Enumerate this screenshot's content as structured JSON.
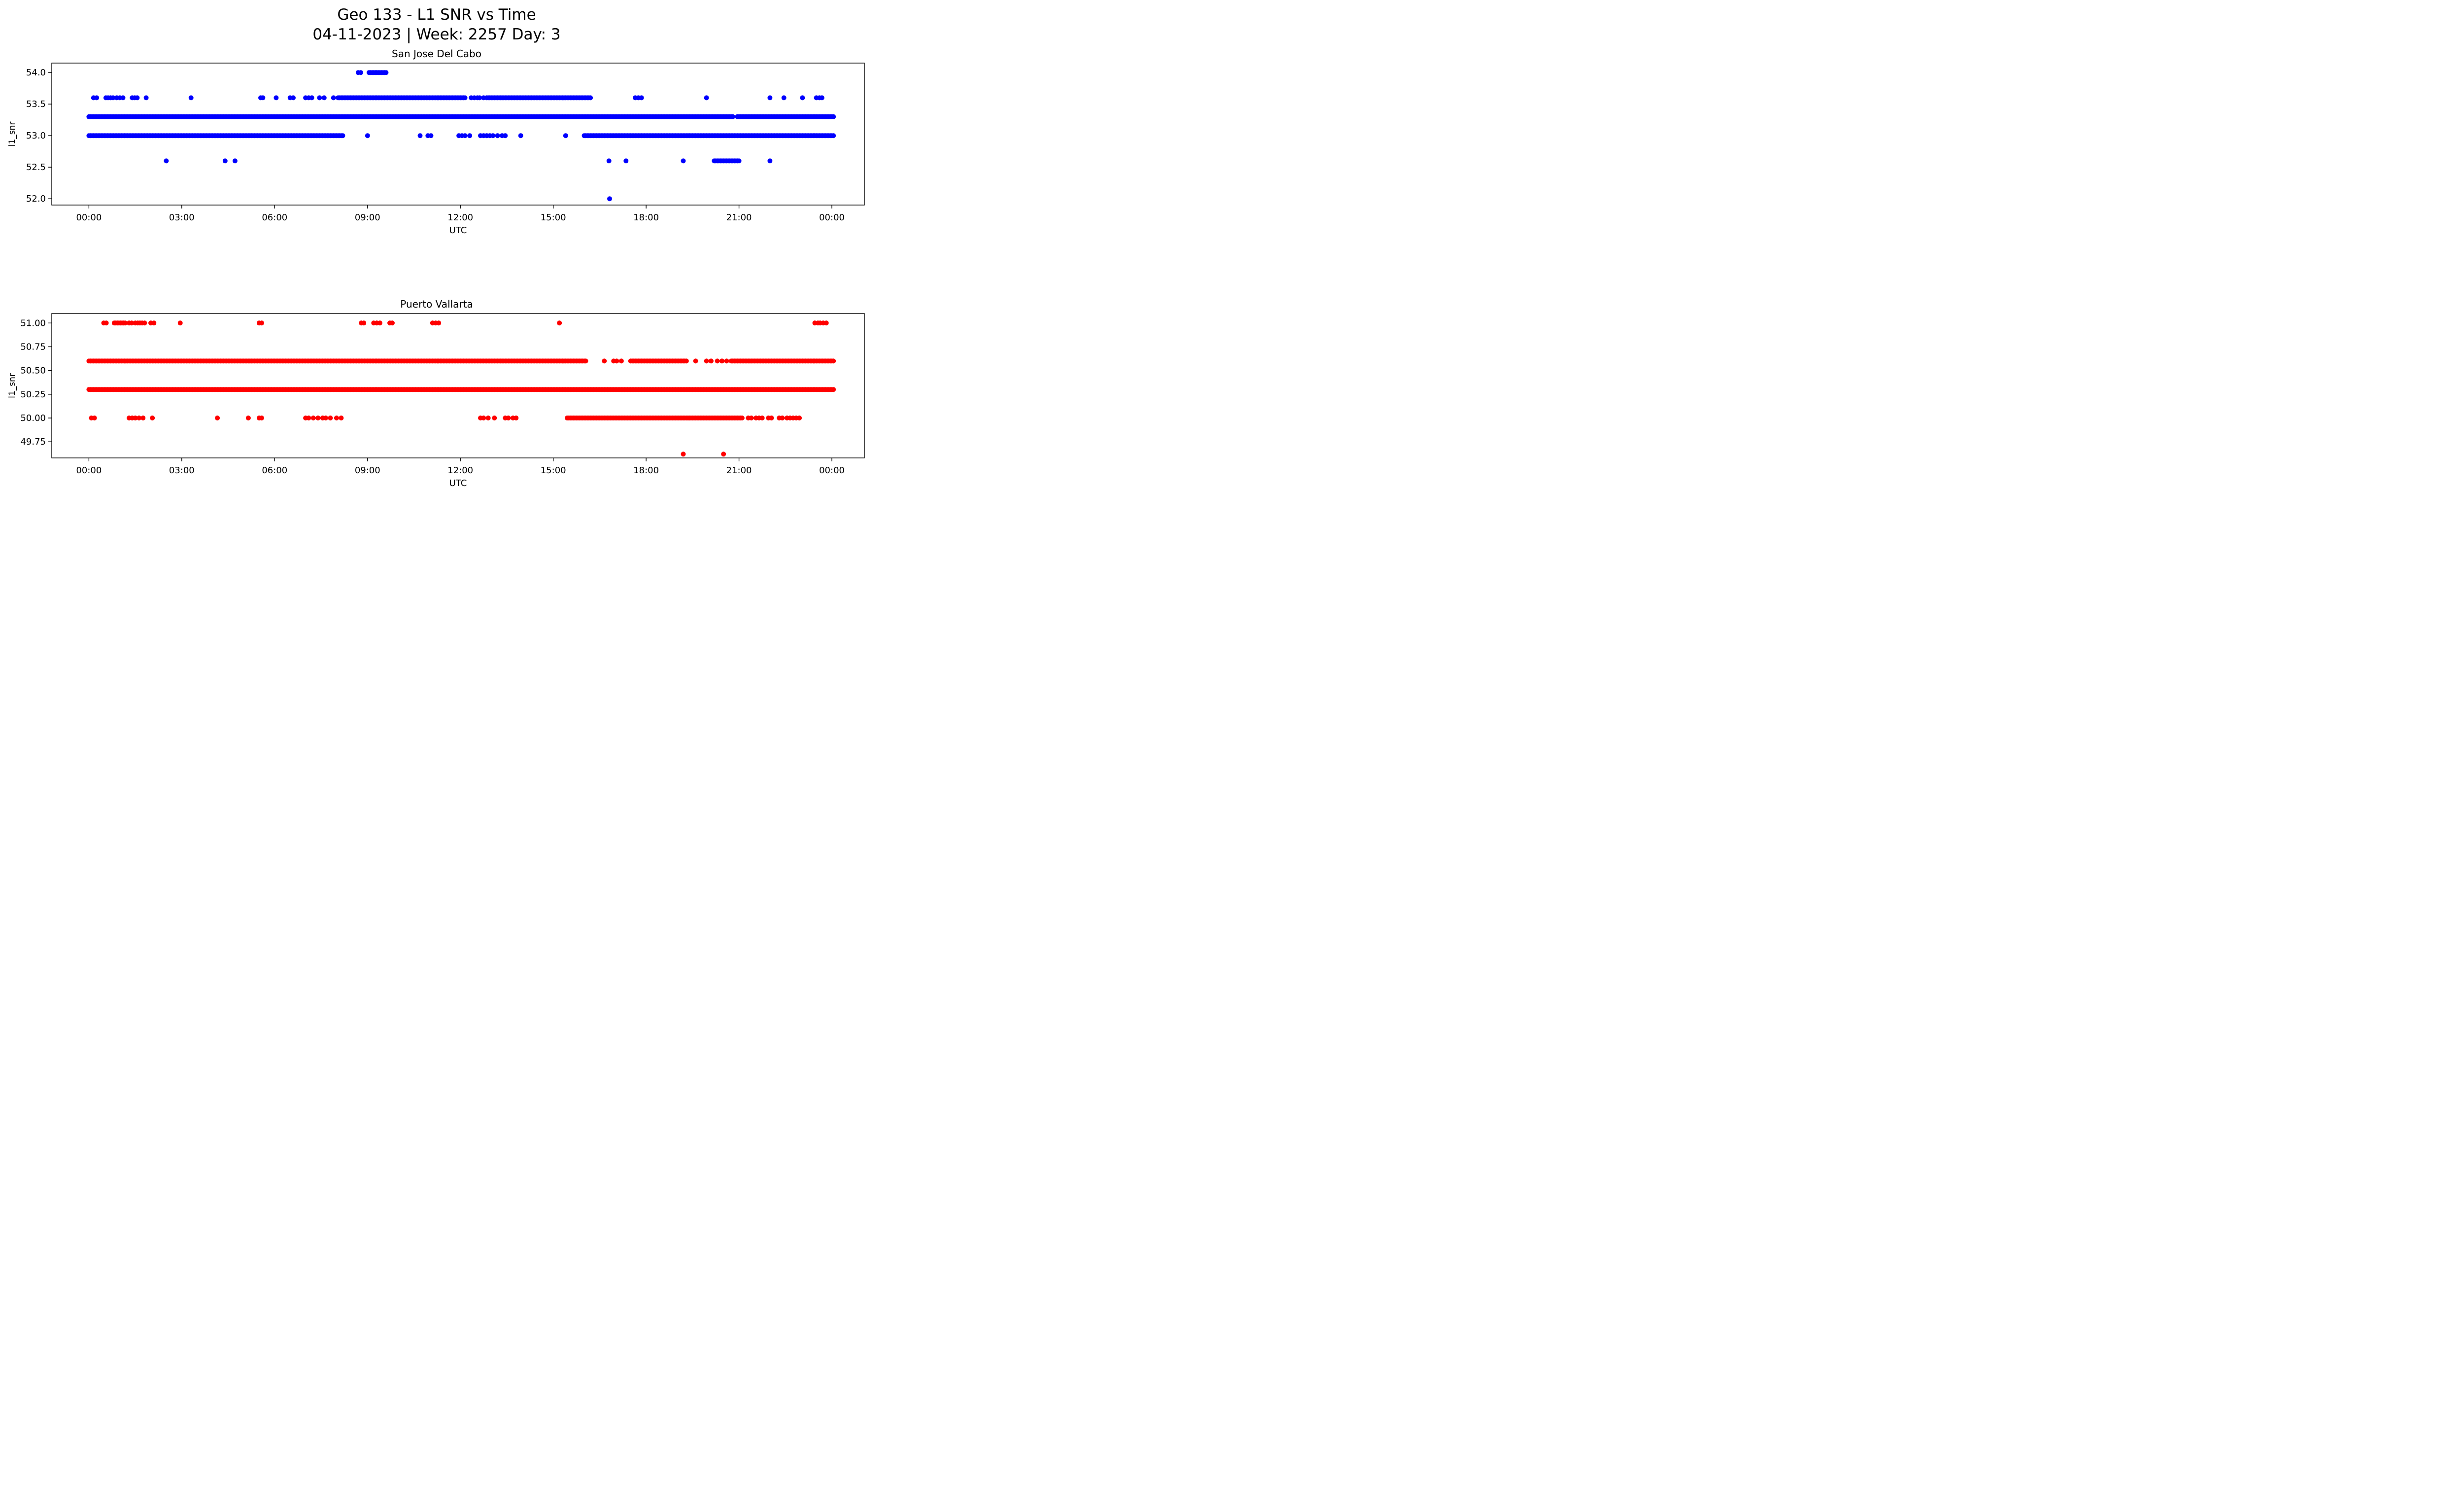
{
  "figure": {
    "title": "Geo 133 - L1 SNR vs Time",
    "subtitle": "04-11-2023 | Week: 2257 Day: 3"
  },
  "chart_data": [
    {
      "type": "scatter",
      "title": "San Jose Del Cabo",
      "xlabel": "UTC",
      "ylabel": "l1_snr",
      "color": "#0000ff",
      "grid": false,
      "legend": "none",
      "xlim": [
        -1.2,
        25.05
      ],
      "ylim": [
        51.9,
        54.15
      ],
      "xticks": [
        "00:00",
        "03:00",
        "06:00",
        "09:00",
        "12:00",
        "15:00",
        "18:00",
        "21:00",
        "00:00"
      ],
      "xtick_hours": [
        0,
        3,
        6,
        9,
        12,
        15,
        18,
        21,
        24
      ],
      "yticks": [
        {
          "v": 54.0,
          "label": "54.0"
        },
        {
          "v": 53.5,
          "label": "53.5"
        },
        {
          "v": 53.0,
          "label": "53.0"
        },
        {
          "v": 52.5,
          "label": "52.5"
        },
        {
          "v": 52.0,
          "label": "52.0"
        }
      ],
      "bands": [
        {
          "snr": 54.0,
          "points": [
            8.7,
            8.78
          ],
          "runs": [
            [
              9.05,
              9.6
            ]
          ]
        },
        {
          "snr": 53.6,
          "points": [
            0.15,
            0.25,
            0.55,
            0.62,
            0.7,
            0.78,
            0.9,
            1.0,
            1.1,
            1.4,
            1.48,
            1.56,
            1.85,
            3.3,
            5.55,
            5.62,
            6.05,
            6.5,
            6.6,
            7.0,
            7.1,
            7.2,
            7.45,
            7.6,
            7.9,
            12.35,
            12.45,
            12.55,
            12.62,
            12.75,
            17.65,
            17.75,
            17.85,
            19.95,
            22.0,
            22.45,
            23.05,
            23.5,
            23.6,
            23.68
          ],
          "runs": [
            [
              8.05,
              12.15
            ],
            [
              12.85,
              16.2
            ]
          ]
        },
        {
          "snr": 53.3,
          "points": [],
          "runs": [
            [
              0.0,
              20.8
            ],
            [
              20.95,
              24.05
            ]
          ]
        },
        {
          "snr": 53.0,
          "points": [
            9.0,
            10.7,
            10.95,
            11.05,
            11.95,
            12.05,
            12.15,
            12.3,
            12.65,
            12.75,
            12.85,
            12.95,
            13.05,
            13.2,
            13.35,
            13.45,
            13.95,
            15.4
          ],
          "runs": [
            [
              0.0,
              8.2
            ],
            [
              16.0,
              24.05
            ]
          ]
        },
        {
          "snr": 52.6,
          "points": [
            2.5,
            4.4,
            4.72,
            16.8,
            17.35,
            19.2,
            22.0
          ],
          "runs": [
            [
              20.2,
              21.0
            ]
          ]
        },
        {
          "snr": 52.0,
          "points": [
            16.82
          ],
          "runs": []
        }
      ]
    },
    {
      "type": "scatter",
      "title": "Puerto Vallarta",
      "xlabel": "UTC",
      "ylabel": "l1_snr",
      "color": "#ff0000",
      "grid": false,
      "legend": "none",
      "xlim": [
        -1.2,
        25.05
      ],
      "ylim": [
        49.58,
        51.1
      ],
      "xticks": [
        "00:00",
        "03:00",
        "06:00",
        "09:00",
        "12:00",
        "15:00",
        "18:00",
        "21:00",
        "00:00"
      ],
      "xtick_hours": [
        0,
        3,
        6,
        9,
        12,
        15,
        18,
        21,
        24
      ],
      "yticks": [
        {
          "v": 51.0,
          "label": "51.00"
        },
        {
          "v": 50.75,
          "label": "50.75"
        },
        {
          "v": 50.5,
          "label": "50.50"
        },
        {
          "v": 50.25,
          "label": "50.25"
        },
        {
          "v": 50.0,
          "label": "50.00"
        },
        {
          "v": 49.75,
          "label": "49.75"
        }
      ],
      "bands": [
        {
          "snr": 51.0,
          "points": [
            0.48,
            0.56,
            1.3,
            1.38,
            1.5,
            1.58,
            1.65,
            1.72,
            1.8,
            2.0,
            2.1,
            2.95,
            5.5,
            5.58,
            8.8,
            8.88,
            9.2,
            9.3,
            9.4,
            9.72,
            9.8,
            11.1,
            11.2,
            11.3,
            15.2,
            23.45,
            23.55,
            23.62,
            23.72,
            23.82
          ],
          "runs": [
            [
              0.82,
              1.2
            ]
          ]
        },
        {
          "snr": 50.6,
          "points": [
            16.65,
            16.95,
            17.05,
            17.2,
            19.6,
            19.95,
            20.1,
            20.3,
            20.45,
            20.6
          ],
          "runs": [
            [
              0.0,
              16.05
            ],
            [
              17.5,
              19.3
            ],
            [
              20.75,
              24.05
            ]
          ]
        },
        {
          "snr": 50.3,
          "points": [],
          "runs": [
            [
              0.0,
              24.05
            ]
          ]
        },
        {
          "snr": 50.0,
          "points": [
            0.08,
            0.18,
            1.3,
            1.4,
            1.5,
            1.62,
            1.75,
            2.05,
            4.15,
            5.15,
            5.5,
            5.58,
            7.0,
            7.1,
            7.25,
            7.4,
            7.55,
            7.65,
            7.8,
            8.0,
            8.15,
            12.65,
            12.75,
            12.9,
            13.1,
            13.45,
            13.55,
            13.7,
            13.8,
            21.3,
            21.4,
            21.55,
            21.65,
            21.75,
            21.95,
            22.05,
            22.3,
            22.4,
            22.55,
            22.65,
            22.75,
            22.85,
            22.95
          ],
          "runs": [
            [
              15.45,
              21.1
            ]
          ]
        },
        {
          "snr": 49.62,
          "points": [
            19.2,
            20.5
          ],
          "runs": []
        }
      ]
    }
  ]
}
